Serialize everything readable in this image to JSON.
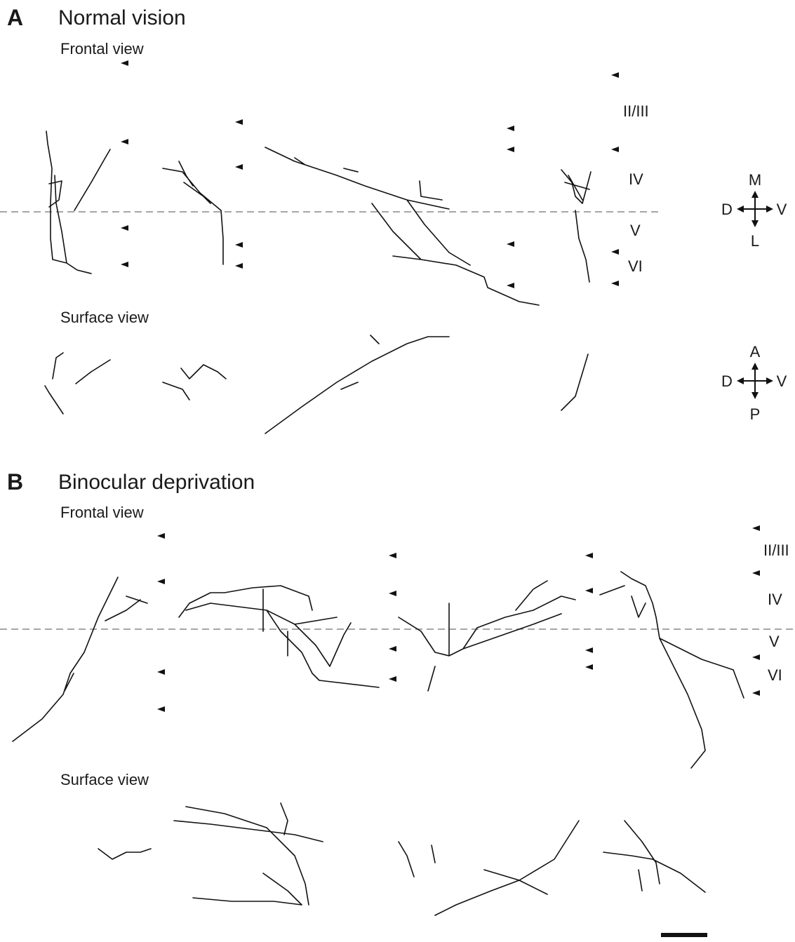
{
  "panels": [
    {
      "letter": "A",
      "title": "Normal vision",
      "frontal_label": "Frontal view",
      "surface_label": "Surface view",
      "layers": [
        "II/III",
        "IV",
        "V",
        "VI"
      ],
      "frontal_axes": {
        "top": "M",
        "left": "D",
        "right": "V",
        "bottom": "L"
      },
      "surface_axes": {
        "top": "A",
        "left": "D",
        "right": "V",
        "bottom": "P"
      }
    },
    {
      "letter": "B",
      "title": "Binocular deprivation",
      "frontal_label": "Frontal view",
      "surface_label": "Surface view",
      "layers": [
        "II/III",
        "IV",
        "V",
        "VI"
      ]
    }
  ]
}
